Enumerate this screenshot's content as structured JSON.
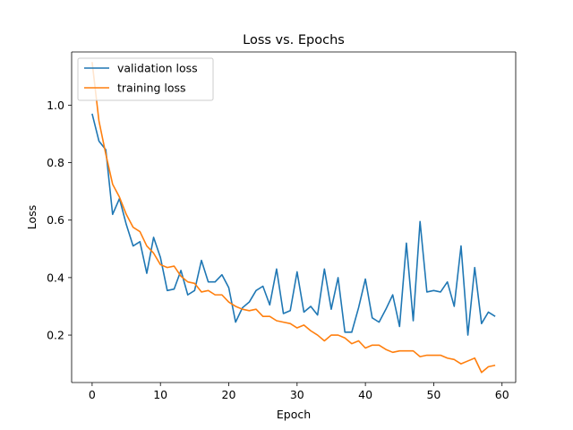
{
  "chart_data": {
    "type": "line",
    "title": "Loss vs. Epochs",
    "xlabel": "Epoch",
    "ylabel": "Loss",
    "xlim": [
      -3,
      62
    ],
    "ylim": [
      0.035,
      1.185
    ],
    "xticks": [
      0,
      10,
      20,
      30,
      40,
      50,
      60
    ],
    "yticks": [
      0.2,
      0.4,
      0.6,
      0.8,
      1.0
    ],
    "legend": "upper-left",
    "grid": false,
    "x": [
      0,
      1,
      2,
      3,
      4,
      5,
      6,
      7,
      8,
      9,
      10,
      11,
      12,
      13,
      14,
      15,
      16,
      17,
      18,
      19,
      20,
      21,
      22,
      23,
      24,
      25,
      26,
      27,
      28,
      29,
      30,
      31,
      32,
      33,
      34,
      35,
      36,
      37,
      38,
      39,
      40,
      41,
      42,
      43,
      44,
      45,
      46,
      47,
      48,
      49,
      50,
      51,
      52,
      53,
      54,
      55,
      56,
      57,
      58,
      59
    ],
    "series": [
      {
        "name": "validation loss",
        "color": "#1f77b4",
        "values": [
          0.97,
          0.875,
          0.845,
          0.62,
          0.675,
          0.585,
          0.51,
          0.525,
          0.415,
          0.54,
          0.47,
          0.355,
          0.36,
          0.425,
          0.34,
          0.355,
          0.46,
          0.385,
          0.385,
          0.41,
          0.365,
          0.245,
          0.295,
          0.315,
          0.355,
          0.37,
          0.305,
          0.43,
          0.275,
          0.285,
          0.42,
          0.28,
          0.3,
          0.27,
          0.43,
          0.29,
          0.4,
          0.21,
          0.21,
          0.295,
          0.395,
          0.26,
          0.245,
          0.29,
          0.34,
          0.23,
          0.52,
          0.25,
          0.595,
          0.35,
          0.355,
          0.35,
          0.385,
          0.3,
          0.51,
          0.2,
          0.435,
          0.24,
          0.28,
          0.265
        ]
      },
      {
        "name": "training loss",
        "color": "#ff7f0e",
        "values": [
          1.15,
          0.945,
          0.83,
          0.725,
          0.68,
          0.62,
          0.575,
          0.56,
          0.51,
          0.485,
          0.445,
          0.435,
          0.44,
          0.405,
          0.385,
          0.38,
          0.35,
          0.355,
          0.34,
          0.34,
          0.315,
          0.3,
          0.29,
          0.285,
          0.29,
          0.265,
          0.265,
          0.25,
          0.245,
          0.24,
          0.225,
          0.235,
          0.215,
          0.2,
          0.18,
          0.2,
          0.2,
          0.19,
          0.17,
          0.18,
          0.155,
          0.165,
          0.165,
          0.15,
          0.14,
          0.145,
          0.145,
          0.145,
          0.125,
          0.13,
          0.13,
          0.13,
          0.12,
          0.115,
          0.1,
          0.11,
          0.12,
          0.07,
          0.09,
          0.095
        ]
      }
    ]
  }
}
